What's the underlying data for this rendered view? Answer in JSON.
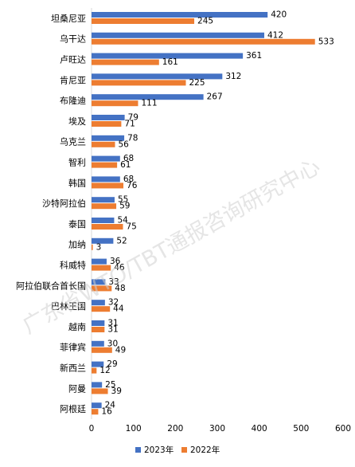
{
  "watermark": "广东省WTO/TBT通报咨询研究中心",
  "colors": {
    "series_2023": "#4472C4",
    "series_2022": "#ED7D31",
    "axis": "#D9D9D9",
    "text": "#000000"
  },
  "chart_data": {
    "type": "bar",
    "orientation": "horizontal",
    "categories": [
      "坦桑尼亚",
      "乌干达",
      "卢旺达",
      "肯尼亚",
      "布隆迪",
      "埃及",
      "乌克兰",
      "智利",
      "韩国",
      "沙特阿拉伯",
      "泰国",
      "加纳",
      "科威特",
      "阿拉伯联合首长国",
      "巴林王国",
      "越南",
      "菲律宾",
      "新西兰",
      "阿曼",
      "阿根廷"
    ],
    "series": [
      {
        "name": "2023年",
        "color": "#4472C4",
        "values": [
          420,
          412,
          361,
          312,
          267,
          79,
          78,
          68,
          68,
          55,
          54,
          52,
          36,
          33,
          32,
          31,
          30,
          29,
          25,
          24
        ]
      },
      {
        "name": "2022年",
        "color": "#ED7D31",
        "values": [
          245,
          533,
          161,
          225,
          111,
          71,
          56,
          61,
          76,
          59,
          75,
          3,
          46,
          48,
          44,
          31,
          49,
          12,
          39,
          16
        ]
      }
    ],
    "xlim": [
      0,
      600
    ],
    "xticks": [
      0,
      100,
      200,
      300,
      400,
      500,
      600
    ],
    "grid": false,
    "legend": "bottom"
  }
}
